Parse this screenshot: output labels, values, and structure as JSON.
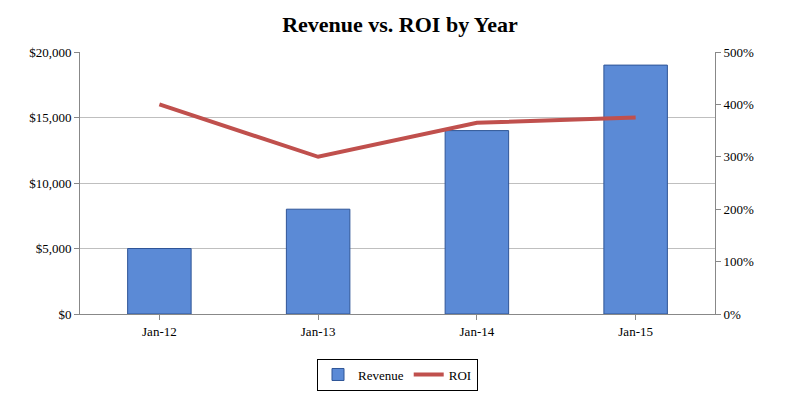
{
  "chart_data": {
    "type": "bar",
    "title": "Revenue vs. ROI by Year",
    "categories": [
      "Jan-12",
      "Jan-13",
      "Jan-14",
      "Jan-15"
    ],
    "series": [
      {
        "name": "Revenue",
        "type": "bar",
        "color": "#5b8ad6",
        "values": [
          5000,
          8000,
          14000,
          19000
        ]
      },
      {
        "name": "ROI",
        "type": "line",
        "axis": "y2",
        "color": "#c0504d",
        "values": [
          400,
          300,
          365,
          375
        ]
      }
    ],
    "ylim": [
      0,
      20000
    ],
    "yticks": [
      {
        "value": 0,
        "label": "$0"
      },
      {
        "value": 5000,
        "label": "$5,000"
      },
      {
        "value": 10000,
        "label": "$10,000"
      },
      {
        "value": 15000,
        "label": "$15,000"
      },
      {
        "value": 20000,
        "label": "$20,000"
      }
    ],
    "y2lim": [
      0,
      500
    ],
    "y2ticks": [
      {
        "value": 0,
        "label": "0%"
      },
      {
        "value": 100,
        "label": "100%"
      },
      {
        "value": 200,
        "label": "200%"
      },
      {
        "value": 300,
        "label": "300%"
      },
      {
        "value": 400,
        "label": "400%"
      },
      {
        "value": 500,
        "label": "500%"
      }
    ],
    "grid": true,
    "legend": "bottom"
  }
}
